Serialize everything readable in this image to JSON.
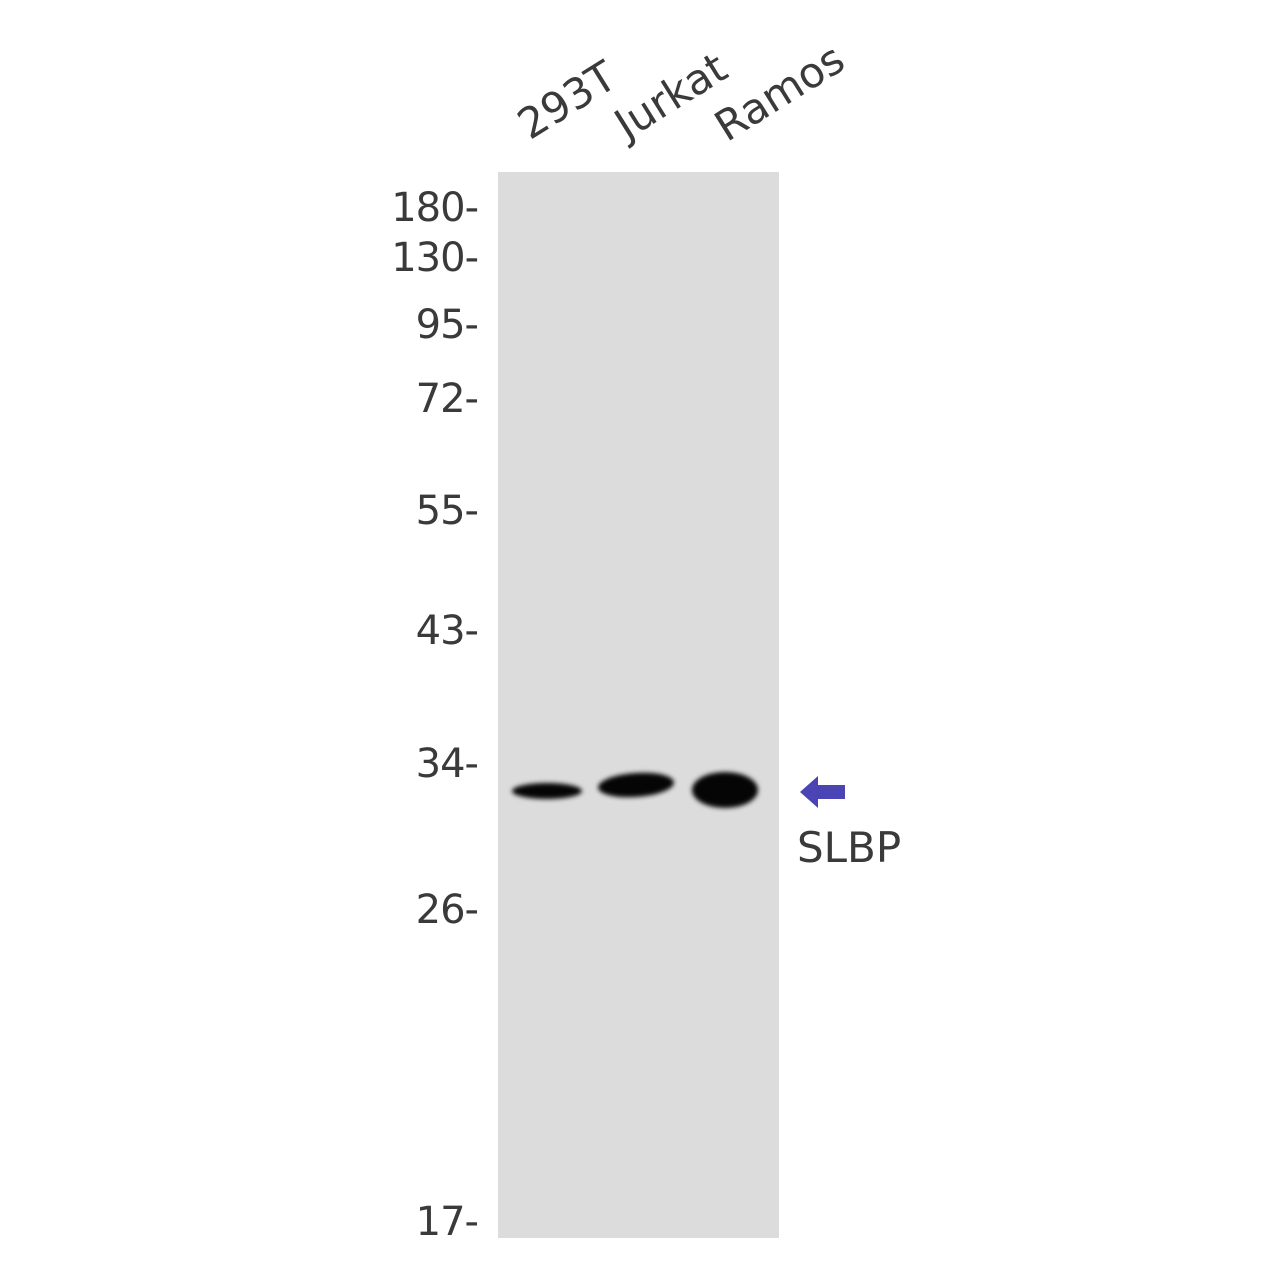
{
  "lanes": [
    "293T",
    "Jurkat",
    "Ramos"
  ],
  "markers": [
    "180-",
    "130-",
    "95-",
    "72-",
    "55-",
    "43-",
    "34-",
    "26-",
    "17-"
  ],
  "target": {
    "label": "SLBP",
    "arrow_icon": "left-arrow-icon",
    "arrow_color": "#4b44b4"
  },
  "colors": {
    "membrane": "#dcdcdc",
    "band": "#050505"
  }
}
